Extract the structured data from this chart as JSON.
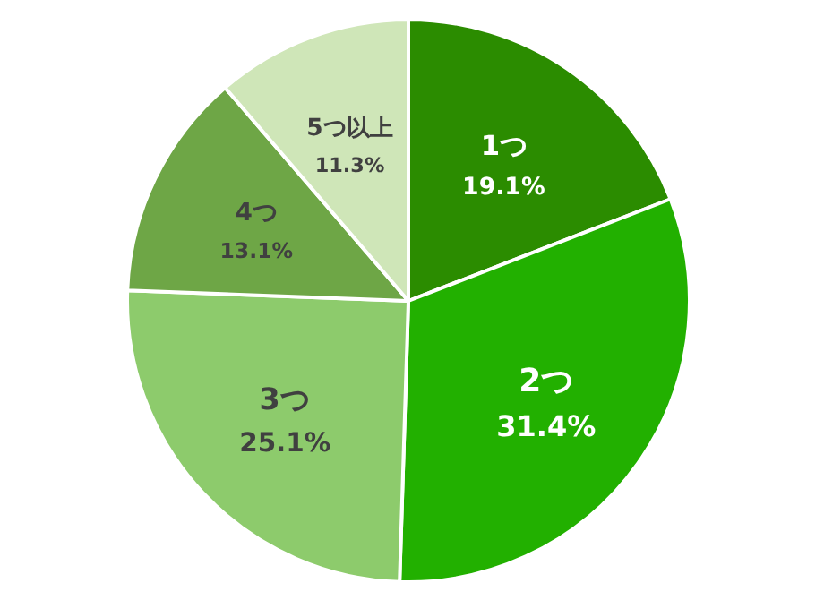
{
  "chart_data": {
    "type": "pie",
    "categories": [
      "1つ",
      "2つ",
      "3つ",
      "4つ",
      "5つ以上"
    ],
    "values": [
      19.1,
      31.4,
      25.1,
      13.1,
      11.3
    ],
    "value_labels": [
      "19.1%",
      "31.4%",
      "25.1%",
      "13.1%",
      "11.3%"
    ],
    "colors": [
      "#2b8c00",
      "#22b000",
      "#8dcb6c",
      "#6ea646",
      "#cfe6b8"
    ]
  }
}
